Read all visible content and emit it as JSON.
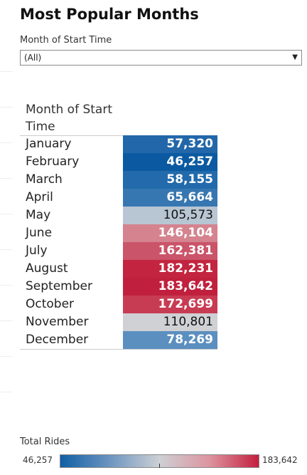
{
  "title": "Most Popular Months",
  "filter": {
    "label": "Month of Start Time",
    "value": "(All)",
    "arrow": "▼"
  },
  "table": {
    "header": "Month of Start Time"
  },
  "legend": {
    "title": "Total Rides",
    "min_label": "46,257",
    "max_label": "183,642"
  },
  "colors": {
    "low": "#0f5fa5",
    "mid": "#cdd0d4",
    "high": "#c4203e"
  },
  "chart_data": {
    "type": "table",
    "color_scale": {
      "min": 46257,
      "max": 183642
    },
    "rows": [
      {
        "label": "January",
        "value": 57320,
        "display": "57,320",
        "color": "#2167a9"
      },
      {
        "label": "February",
        "value": 46257,
        "display": "46,257",
        "color": "#0b5aa1"
      },
      {
        "label": "March",
        "value": 58155,
        "display": "58,155",
        "color": "#226aab"
      },
      {
        "label": "April",
        "value": 65664,
        "display": "65,664",
        "color": "#3777b1"
      },
      {
        "label": "May",
        "value": 105573,
        "display": "105,573",
        "color": "#b8c5d3"
      },
      {
        "label": "June",
        "value": 146104,
        "display": "146,104",
        "color": "#d4838f"
      },
      {
        "label": "July",
        "value": 162381,
        "display": "162,381",
        "color": "#ca5469"
      },
      {
        "label": "August",
        "value": 182231,
        "display": "182,231",
        "color": "#c3243f"
      },
      {
        "label": "September",
        "value": 183642,
        "display": "183,642",
        "color": "#c0203d"
      },
      {
        "label": "October",
        "value": 172699,
        "display": "172,699",
        "color": "#c73c53"
      },
      {
        "label": "November",
        "value": 110801,
        "display": "110,801",
        "color": "#cfd1d5"
      },
      {
        "label": "December",
        "value": 78269,
        "display": "78,269",
        "color": "#5b8fbf"
      }
    ]
  }
}
